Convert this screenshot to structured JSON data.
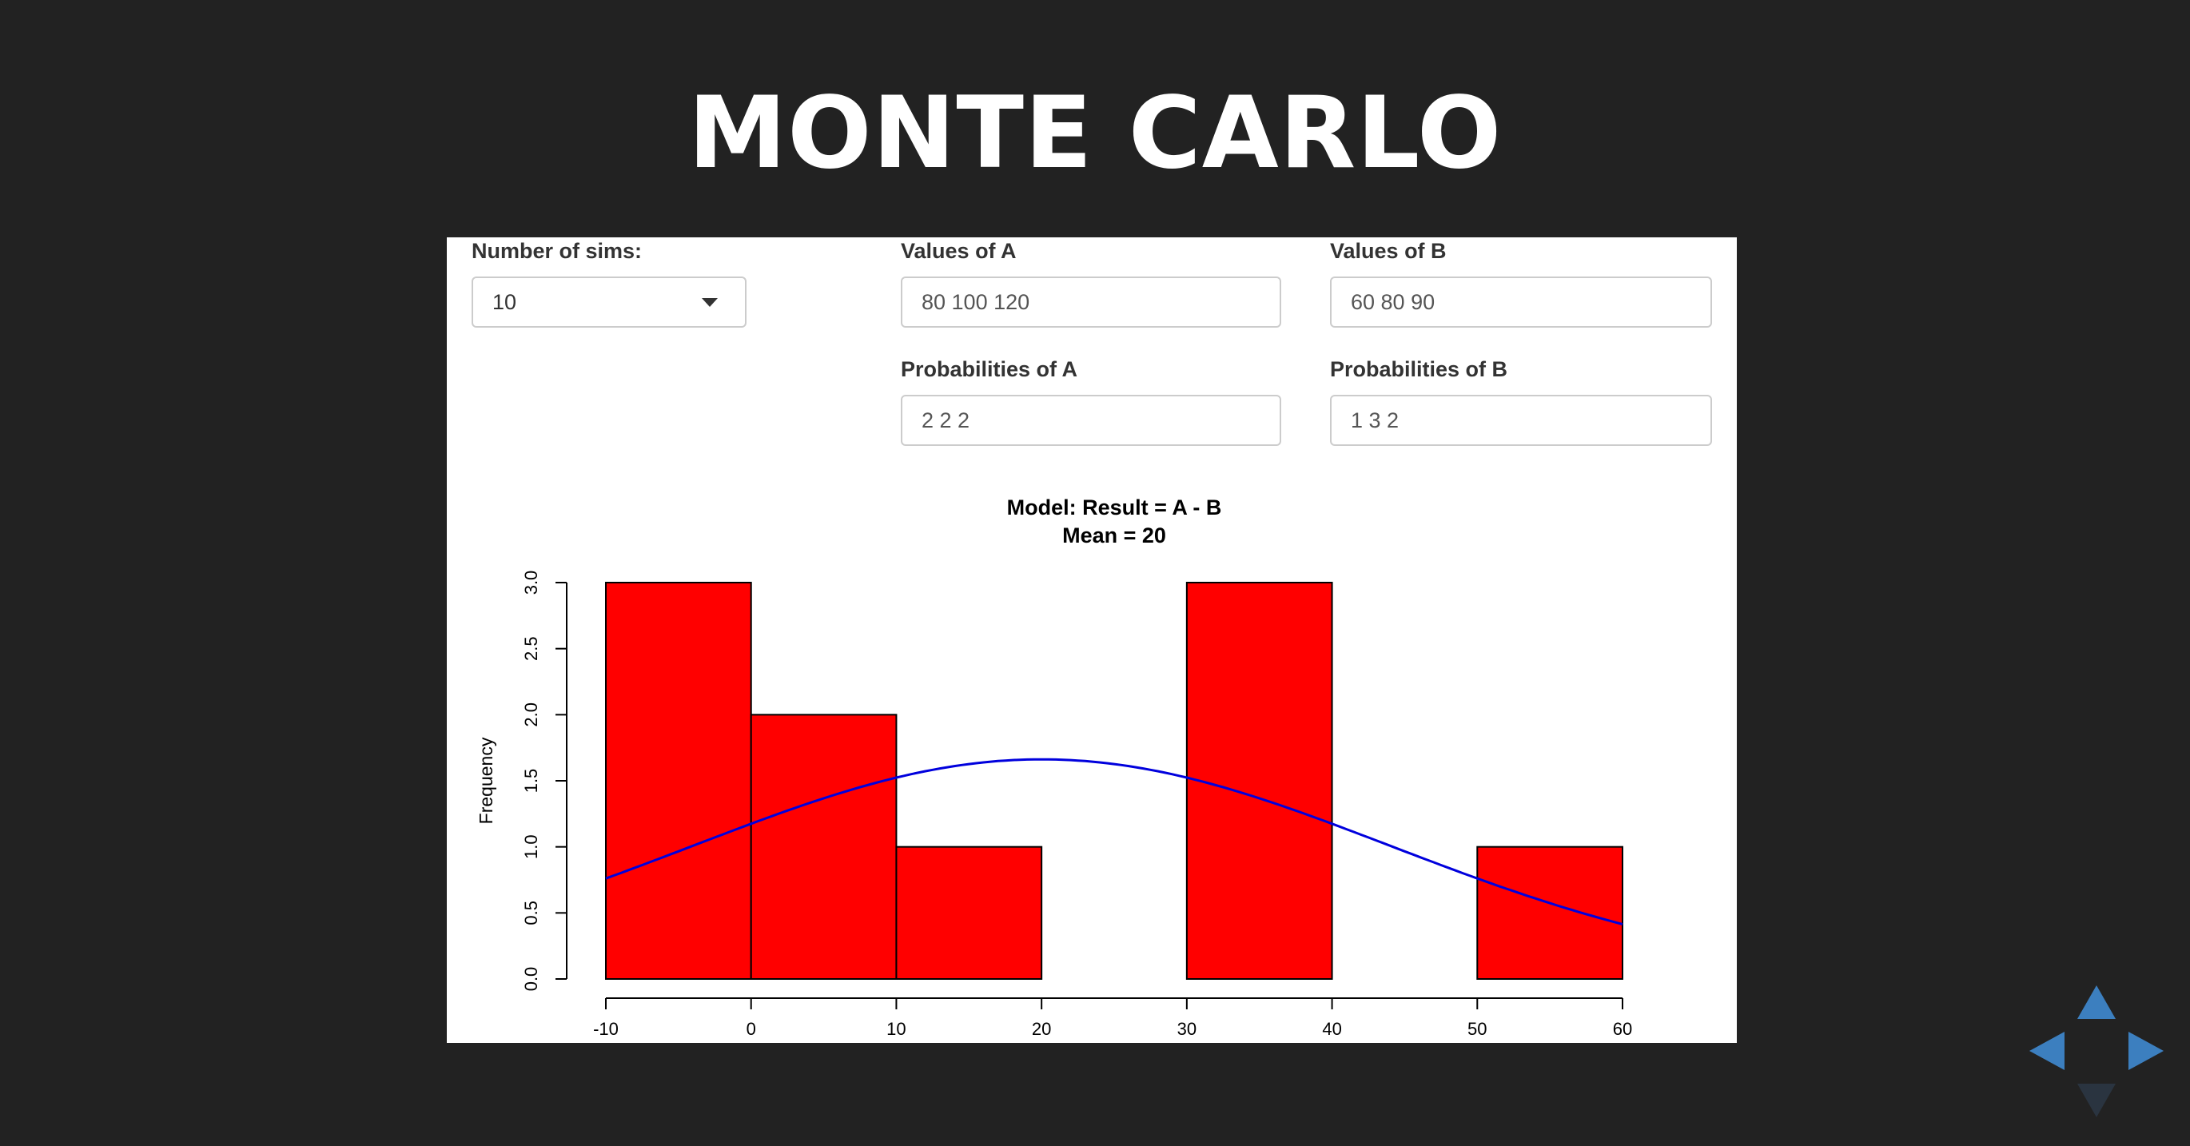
{
  "slide": {
    "title": "MONTE CARLO"
  },
  "form": {
    "sims": {
      "label": "Number of sims:",
      "value": "10"
    },
    "values_a": {
      "label": "Values of A",
      "value": "80 100 120"
    },
    "values_b": {
      "label": "Values of B",
      "value": "60 80 90"
    },
    "prob_a": {
      "label": "Probabilities of A",
      "value": "2 2 2"
    },
    "prob_b": {
      "label": "Probabilities of B",
      "value": "1 3 2"
    }
  },
  "chart_data": {
    "type": "bar",
    "title": "Model: Result = A - B",
    "subtitle": "Mean = 20",
    "xlabel": "",
    "ylabel": "Frequency",
    "bins": [
      {
        "from": -10,
        "to": 0,
        "count": 3
      },
      {
        "from": 0,
        "to": 10,
        "count": 2
      },
      {
        "from": 10,
        "to": 20,
        "count": 1
      },
      {
        "from": 20,
        "to": 30,
        "count": 0
      },
      {
        "from": 30,
        "to": 40,
        "count": 3
      },
      {
        "from": 40,
        "to": 50,
        "count": 0
      },
      {
        "from": 50,
        "to": 60,
        "count": 1
      }
    ],
    "bar_color": "#ff0000",
    "curve_color": "#0000dd",
    "curve": {
      "type": "normal",
      "mean": 20,
      "sd": 24,
      "scale": 100
    },
    "xlim": [
      -10,
      60
    ],
    "ylim": [
      0,
      3
    ],
    "x_ticks": [
      "-10",
      "0",
      "10",
      "20",
      "30",
      "40",
      "50",
      "60"
    ],
    "y_ticks": [
      "0.0",
      "0.5",
      "1.0",
      "1.5",
      "2.0",
      "2.5",
      "3.0"
    ],
    "grid": false,
    "legend": "none"
  },
  "navigation": {
    "up_icon": "arrow-up-icon",
    "left_icon": "arrow-left-icon",
    "right_icon": "arrow-right-icon",
    "down_icon": "arrow-down-icon",
    "color": "#3c7fbf"
  }
}
